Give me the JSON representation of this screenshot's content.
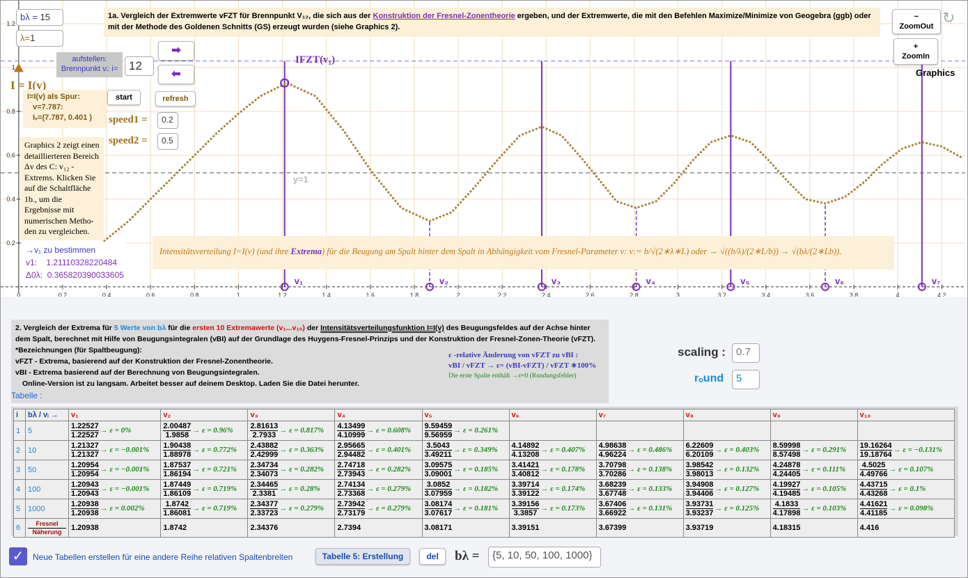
{
  "header": {
    "b_lambda_label": "bλ =",
    "b_lambda": "15",
    "lambda_label": "λ=",
    "lambda": "1",
    "title": "1a. Vergleich der Extremwerte vFZT für Brennpunkt V₁₂, die sich aus der ",
    "title_link": "Konstruktion der Fresnel-Zonentheorie",
    "title_rest": " ergeben, und der Extremwerte, die mit den Befehlen Maximize/Minimize von Geogebra (ggb) oder mit der Methode des Goldenen Schnitts (GS) erzeugt wurden (siehe Graphics 2).",
    "zoom_out_icon": "−",
    "zoom_out": "ZoomOut",
    "zoom_in_icon": "+",
    "zoom_in": "ZoomIn",
    "graphics": "Graphics"
  },
  "controls": {
    "aufstellen": "aufstellen:",
    "brennpunkt": "Brennpunkt vᵢ: i=",
    "i_value": "12",
    "arrow_right": "➡",
    "arrow_left": "⬅",
    "i_label": "I = I(v)",
    "spur_title": "I=I(v)  als Spur:",
    "spur_v": "v=7.787:",
    "spur_iv": "Iᵥ=(7.787, 0.401 )",
    "start": "start",
    "refresh": "refresh",
    "speed1": "speed1 =",
    "speed1_value": "0.2",
    "speed2": "speed2 =",
    "speed2_value": "0.5",
    "graphics2": "Graphics 2 zeigt einen detaillierteren Bereich Δv des C: v₁₂ - Extrems. Klicken Sie auf die Schaltfläche 1b., um die Ergebnisse mit numerischen Metho-den zu vergleichen.",
    "v1_title": "→v₁ zu bestimmen",
    "v1_label": "v1:",
    "v1_value": "1.21110328220484",
    "delta_label": "Δ0λ:",
    "delta_value": "0.365820390033605",
    "fzt_label": "IFZT(v₁)",
    "formula": [
      "Intensitätsverteilung I=I(v) (und ihre ",
      "Extrema",
      ") für die Beugung am Spalt hinter dem Spalt in Abhängigkeit vom Fresnel-Parameter v:  v:= b/√(2∗λ∗L)  oder → √((b/λ)/(2∗L/b)) → √(bλ/(2∗Lb))."
    ]
  },
  "chart_data": {
    "type": "line",
    "x": [
      0.39,
      0.5,
      0.6,
      0.7,
      0.8,
      0.9,
      1.0,
      1.1,
      1.22,
      1.35,
      1.48,
      1.61,
      1.74,
      1.87,
      1.97,
      2.07,
      2.18,
      2.28,
      2.38,
      2.47,
      2.55,
      2.64,
      2.72,
      2.81,
      2.9,
      2.98,
      3.07,
      3.15,
      3.24,
      3.33,
      3.41,
      3.5,
      3.58,
      3.67,
      3.76,
      3.85,
      3.93,
      4.02,
      4.11,
      4.2,
      4.29
    ],
    "values": [
      0.21,
      0.3,
      0.4,
      0.5,
      0.6,
      0.7,
      0.79,
      0.87,
      0.93,
      0.87,
      0.71,
      0.52,
      0.36,
      0.3,
      0.34,
      0.45,
      0.58,
      0.69,
      0.73,
      0.69,
      0.6,
      0.49,
      0.39,
      0.36,
      0.39,
      0.47,
      0.58,
      0.66,
      0.69,
      0.66,
      0.58,
      0.48,
      0.4,
      0.38,
      0.41,
      0.48,
      0.56,
      0.63,
      0.66,
      0.64,
      0.59
    ],
    "color": "#a8843a",
    "xlim": [
      -0.082,
      4.307
    ],
    "ylim": [
      -0.029,
      1.305
    ],
    "xticks": [
      0,
      0.2,
      0.4,
      0.6,
      0.8,
      1,
      1.2,
      1.4,
      1.6,
      1.8,
      2,
      2.2,
      2.4,
      2.6,
      2.8,
      3,
      3.2,
      3.4,
      3.6,
      3.8,
      4,
      4.2
    ],
    "yticks": [
      0.2,
      0.4,
      0.6,
      0.8,
      1,
      1.2
    ],
    "grid": true,
    "extrema": {
      "labels": [
        "v₁",
        "v₂",
        "v₃",
        "v₄",
        "v₅",
        "v₆",
        "v₇"
      ],
      "x": [
        1.21,
        1.87,
        2.38,
        2.81,
        3.24,
        3.67,
        4.11
      ],
      "y": [
        0.93,
        0.3,
        0.73,
        0.36,
        0.69,
        0.38,
        0.66
      ],
      "kind": [
        "max",
        "min",
        "max",
        "min",
        "max",
        "min",
        "max"
      ],
      "color": "#7b2fb8"
    },
    "hlines": [
      {
        "y": 1.03,
        "color": "#7b7bd6"
      },
      {
        "y": 0.52,
        "color": "#555555",
        "label": "y=1"
      }
    ]
  },
  "section2": {
    "intro": [
      "2. Vergleich der Extrema für ",
      "5 Werte von bλ",
      " für die ",
      "ersten 10 Extremawerte (v₁...v₁₀)",
      " der ",
      "Intensitätsverteilungsfunktion I=I(v)",
      " des Beugungsfeldes auf der Achse hinter dem Spalt, berechnet mit Hilfe von Beugungsintegralen (vBI) auf der Grundlage des Huygens-Fresnel-Prinzips und der Konstruktion der Fresnel-Zonen-Theorie (vFZT)."
    ],
    "bez": "*Bezeichnungen (für Spaltbeugung):",
    "fzt": "vFZT   -  Extrema, basierend auf der Konstruktion der Fresnel-Zonentheorie.",
    "bi": "vBI     -  Extrema basierend auf der Berechnung von Beugungsintegralen.",
    "online": "Online-Version ist zu langsam. Arbeitet besser auf deinem Desktop. Laden Sie die Datei herunter.",
    "eps_title": "ε -relative Änderung von  vFZT zu vBI :",
    "eps_formula": "vBI / vFZT  →   ε= (vBI-vFZT) / vFZT ∗100%",
    "eps_note": "Die erste Spalte enthält →ε≈0 (Rundungsfehler)",
    "scaling": "scaling :",
    "scaling_value": "0.7",
    "round": "rₒund",
    "round_value": "5"
  },
  "table": {
    "label": "Tabelle :",
    "header": [
      "i",
      "bλ  /  vᵢ →",
      "v₁",
      "v₂",
      "v₃",
      "v₄",
      "v₅",
      "v₆",
      "v₇",
      "v₈",
      "v₉",
      "v₁₀"
    ],
    "rows": [
      {
        "i": "1",
        "b": "5",
        "cells": [
          {
            "top": "1.22527",
            "bottom": "1.22527",
            "eps": "→ ε = 0%"
          },
          {
            "top": "2.00487",
            "bottom": "1.9858",
            "eps": "→ ε = 0.96%"
          },
          {
            "top": "2.81613",
            "bottom": "2.7933",
            "eps": "→ ε = 0.817%"
          },
          {
            "top": "4.13499",
            "bottom": "4.10999",
            "eps": "→ ε = 0.608%"
          },
          {
            "top": "9.59459",
            "bottom": "9.56959",
            "eps": "→ ε = 0.261%"
          },
          null,
          null,
          null,
          null,
          null
        ]
      },
      {
        "i": "2",
        "b": "10",
        "cells": [
          {
            "top": "1.21327",
            "bottom": "1.21327",
            "eps": "→ ε = −0.001%"
          },
          {
            "top": "1.90438",
            "bottom": "1.88978",
            "eps": "→ ε = 0.772%"
          },
          {
            "top": "2.43882",
            "bottom": "2.42999",
            "eps": "→ ε = 0.363%"
          },
          {
            "top": "2.95665",
            "bottom": "2.94482",
            "eps": "→ ε = 0.401%"
          },
          {
            "top": "3.5043",
            "bottom": "3.49211",
            "eps": "→ ε = 0.349%"
          },
          {
            "top": "4.14892",
            "bottom": "4.13208",
            "eps": "→ ε = 0.407%"
          },
          {
            "top": "4.98638",
            "bottom": "4.96224",
            "eps": "→ ε = 0.486%"
          },
          {
            "top": "6.22609",
            "bottom": "6.20109",
            "eps": "→ ε = 0.403%"
          },
          {
            "top": "8.59998",
            "bottom": "8.57498",
            "eps": "→ ε = 0.291%"
          },
          {
            "top": "19.16264",
            "bottom": "19.18764",
            "eps": "→ ε = −0.131%"
          }
        ]
      },
      {
        "i": "3",
        "b": "50",
        "cells": [
          {
            "top": "1.20954",
            "bottom": "1.20954",
            "eps": "→ ε = −0.001%"
          },
          {
            "top": "1.87537",
            "bottom": "1.86194",
            "eps": "→ ε = 0.721%"
          },
          {
            "top": "2.34734",
            "bottom": "2.34073",
            "eps": "→ ε = 0.282%"
          },
          {
            "top": "2.74718",
            "bottom": "2.73943",
            "eps": "→ ε = 0.282%"
          },
          {
            "top": "3.09575",
            "bottom": "3.09001",
            "eps": "→ ε = 0.185%"
          },
          {
            "top": "3.41421",
            "bottom": "3.40812",
            "eps": "→ ε = 0.178%"
          },
          {
            "top": "3.70798",
            "bottom": "3.70286",
            "eps": "→ ε = 0.138%"
          },
          {
            "top": "3.98542",
            "bottom": "3.98013",
            "eps": "→ ε = 0.132%"
          },
          {
            "top": "4.24878",
            "bottom": "4.24405",
            "eps": "→ ε = 0.111%"
          },
          {
            "top": "4.5025",
            "bottom": "4.49766",
            "eps": "→ ε = 0.107%"
          }
        ]
      },
      {
        "i": "4",
        "b": "100",
        "cells": [
          {
            "top": "1.20943",
            "bottom": "1.20943",
            "eps": "→ ε = −0.001%"
          },
          {
            "top": "1.87449",
            "bottom": "1.86109",
            "eps": "→ ε = 0.719%"
          },
          {
            "top": "2.34465",
            "bottom": "2.3381",
            "eps": "→ ε = 0.28%"
          },
          {
            "top": "2.74134",
            "bottom": "2.73368",
            "eps": "→ ε = 0.279%"
          },
          {
            "top": "3.0852",
            "bottom": "3.07959",
            "eps": "→ ε = 0.182%"
          },
          {
            "top": "3.39714",
            "bottom": "3.39122",
            "eps": "→ ε = 0.174%"
          },
          {
            "top": "3.68239",
            "bottom": "3.67748",
            "eps": "→ ε = 0.133%"
          },
          {
            "top": "3.94908",
            "bottom": "3.94406",
            "eps": "→ ε = 0.127%"
          },
          {
            "top": "4.19927",
            "bottom": "4.19485",
            "eps": "→ ε = 0.105%"
          },
          {
            "top": "4.43715",
            "bottom": "4.43268",
            "eps": "→ ε = 0.1%"
          }
        ]
      },
      {
        "i": "5",
        "b": "1000",
        "cells": [
          {
            "top": "1.20938",
            "bottom": "1.20938",
            "eps": "→ ε = 0.002%"
          },
          {
            "top": "1.8742",
            "bottom": "1.86081",
            "eps": "→ ε = 0.719%"
          },
          {
            "top": "2.34377",
            "bottom": "2.33723",
            "eps": "→ ε = 0.279%"
          },
          {
            "top": "2.73942",
            "bottom": "2.73179",
            "eps": "→ ε = 0.279%"
          },
          {
            "top": "3.08174",
            "bottom": "3.07617",
            "eps": "→ ε = 0.181%"
          },
          {
            "top": "3.39156",
            "bottom": "3.3857",
            "eps": "→ ε = 0.173%"
          },
          {
            "top": "3.67406",
            "bottom": "3.66922",
            "eps": "→ ε = 0.131%"
          },
          {
            "top": "3.93731",
            "bottom": "3.93237",
            "eps": "→ ε = 0.125%"
          },
          {
            "top": "4.1833",
            "bottom": "4.17898",
            "eps": "→ ε = 0.103%"
          },
          {
            "top": "4.41621",
            "bottom": "4.41185",
            "eps": "→ ε = 0.098%"
          }
        ]
      }
    ],
    "last": {
      "i": "6",
      "b": [
        "Fresnel",
        "Näherung"
      ],
      "cells": [
        "1.20938",
        "1.8742",
        "2.34376",
        "2.7394",
        "3.08171",
        "3.39151",
        "3.67399",
        "3.93719",
        "4.18315",
        "4.416"
      ]
    }
  },
  "footer": {
    "checkbox": "Neue Tabellen erstellen für eine andere Reihe  relativen Spaltenbreiten",
    "button": "Tabelle 5: Erstellung",
    "del": "del",
    "b_label": "bλ =",
    "b_value": "{5, 10, 50, 100, 1000}"
  }
}
